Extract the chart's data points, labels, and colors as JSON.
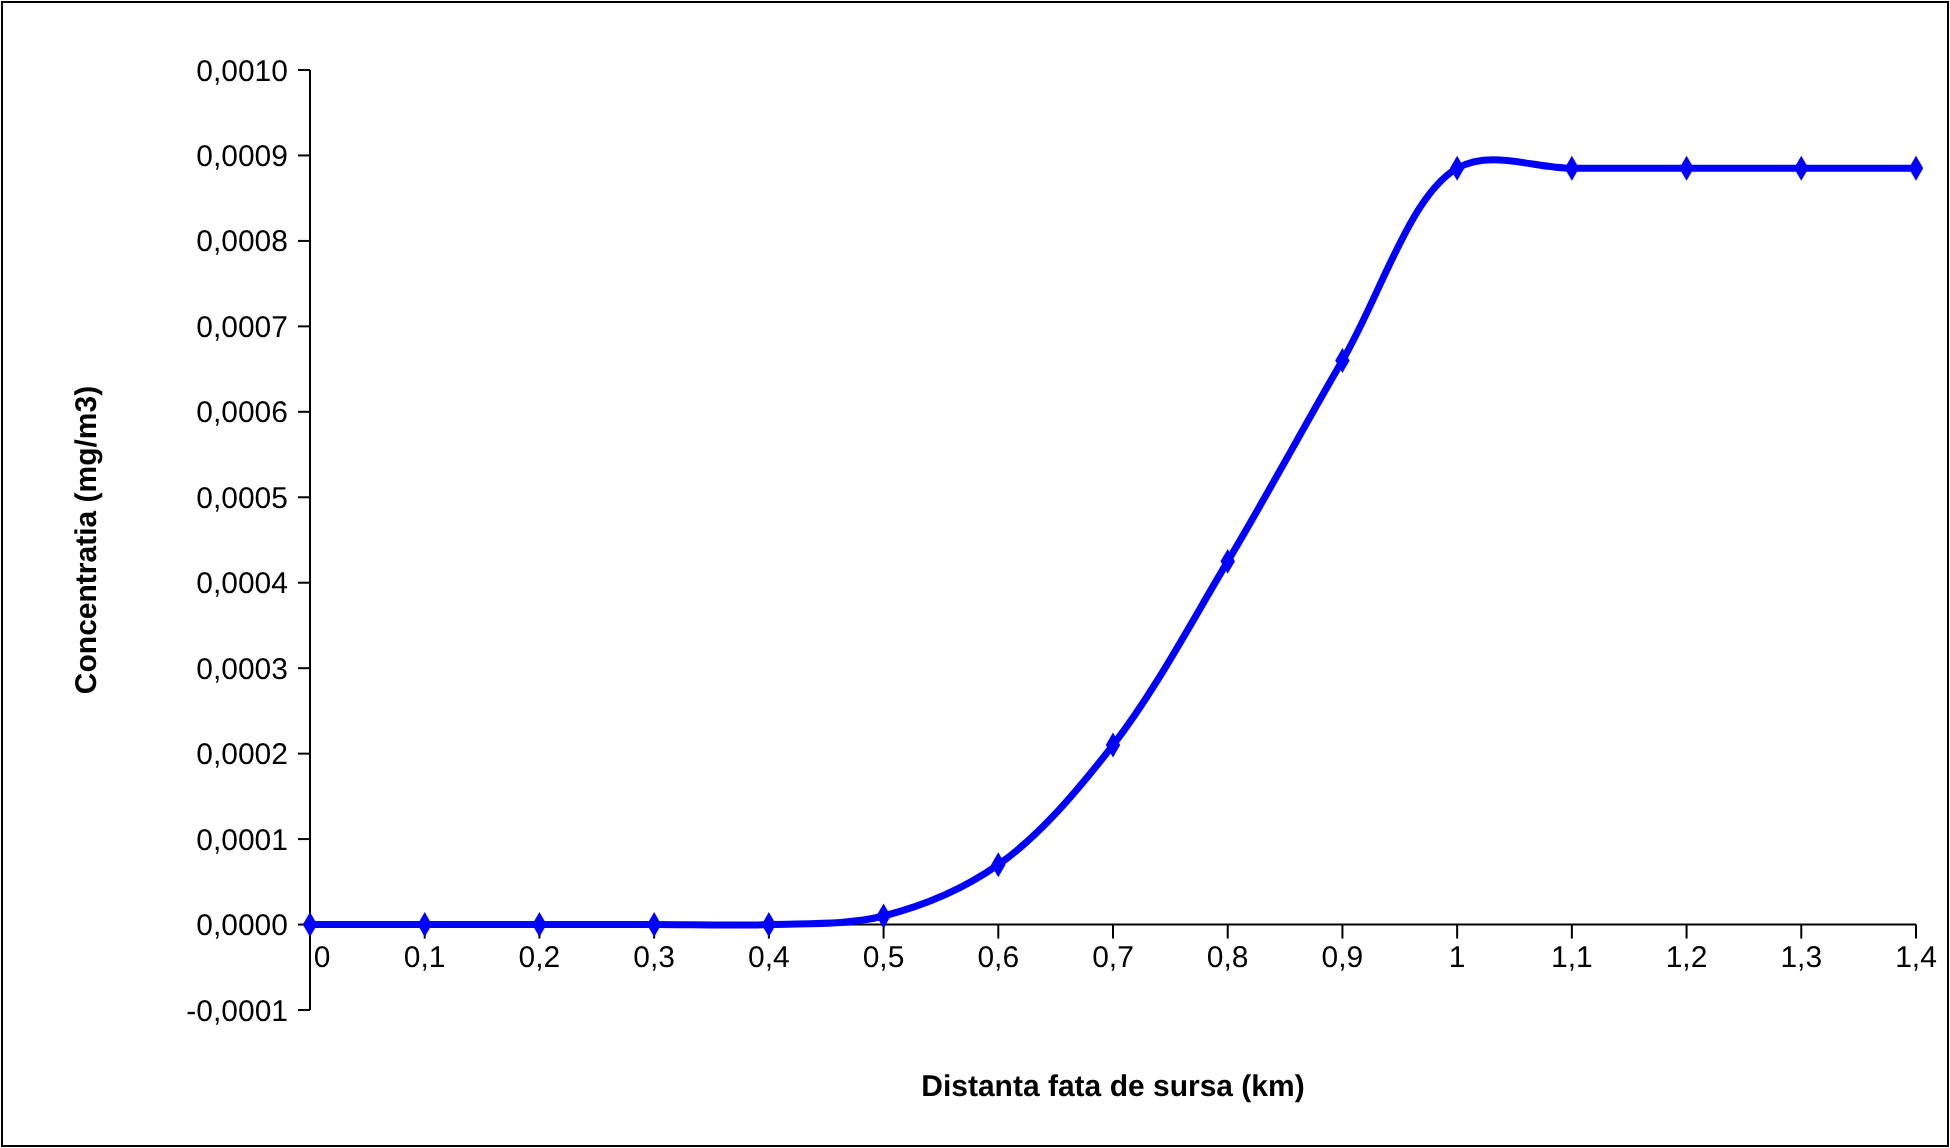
{
  "chart_data": {
    "type": "line",
    "xlabel": "Distanta fata de sursa (km)",
    "ylabel": "Concentratia (mg/m3)",
    "x": [
      0,
      0.1,
      0.2,
      0.3,
      0.4,
      0.5,
      0.6,
      0.7,
      0.8,
      0.9,
      1.0,
      1.1,
      1.2,
      1.3,
      1.4
    ],
    "series": [
      {
        "color": "#0000ff",
        "values": [
          0,
          0,
          0,
          0,
          0,
          1e-05,
          7e-05,
          0.00021,
          0.000425,
          0.00066,
          0.000885,
          0.000885,
          0.000885,
          0.000885,
          0.000885
        ]
      }
    ],
    "xlim": [
      0,
      1.4
    ],
    "xticks": [
      0,
      {
        "value": 0.1,
        "label": "0,1"
      },
      {
        "value": 0.2,
        "label": "0,2"
      },
      {
        "value": 0.3,
        "label": "0,3"
      },
      {
        "value": 0.4,
        "label": "0,4"
      },
      {
        "value": 0.5,
        "label": "0,5"
      },
      {
        "value": 0.6,
        "label": "0,6"
      },
      {
        "value": 0.7,
        "label": "0,7"
      },
      {
        "value": 0.8,
        "label": "0,8"
      },
      {
        "value": 0.9,
        "label": "0,9"
      },
      1,
      {
        "value": 1.1,
        "label": "1,1"
      },
      {
        "value": 1.2,
        "label": "1,2"
      },
      {
        "value": 1.3,
        "label": "1,3"
      },
      {
        "value": 1.4,
        "label": "1,4"
      }
    ],
    "ylim": [
      -0.0001,
      0.001
    ],
    "yticks": [
      {
        "value": -0.0001,
        "label": "-0,0001"
      },
      {
        "value": 0,
        "label": "0,0000"
      },
      {
        "value": 0.0001,
        "label": "0,0001"
      },
      {
        "value": 0.0002,
        "label": "0,0002"
      },
      {
        "value": 0.0003,
        "label": "0,0003"
      },
      {
        "value": 0.0004,
        "label": "0,0004"
      },
      {
        "value": 0.0005,
        "label": "0,0005"
      },
      {
        "value": 0.0006,
        "label": "0,0006"
      },
      {
        "value": 0.0007,
        "label": "0,0007"
      },
      {
        "value": 0.0008,
        "label": "0,0008"
      },
      {
        "value": 0.0009,
        "label": "0,0009"
      },
      {
        "value": 0.001,
        "label": "0,0010"
      }
    ],
    "marker": "diamond",
    "line_style": "solid",
    "grid": false
  }
}
